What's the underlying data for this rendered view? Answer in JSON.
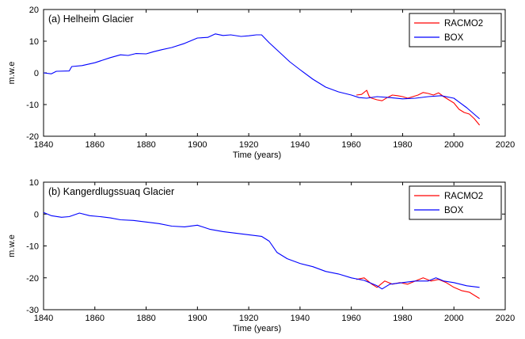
{
  "colors": {
    "series_1": "#ff0000",
    "series_2": "#0000ff",
    "axis": "#000000",
    "background": "#ffffff"
  },
  "chart_data": [
    {
      "type": "line",
      "panel_label": "(a)   Helheim Glacier",
      "xlabel": "Time (years)",
      "ylabel": "m.w.e",
      "xlim": [
        1840,
        2020
      ],
      "ylim": [
        -20,
        20
      ],
      "xticks": [
        1840,
        1860,
        1880,
        1900,
        1920,
        1940,
        1960,
        1980,
        2000,
        2020
      ],
      "yticks": [
        -20,
        -10,
        0,
        10,
        20
      ],
      "grid": false,
      "legend_position": "top-right",
      "series": [
        {
          "name": "RACMO2",
          "color": "#ff0000",
          "x": [
            1962,
            1964,
            1966,
            1967,
            1968,
            1970,
            1972,
            1974,
            1976,
            1978,
            1980,
            1982,
            1984,
            1986,
            1988,
            1990,
            1992,
            1994,
            1996,
            1998,
            2000,
            2002,
            2004,
            2006,
            2008,
            2010
          ],
          "y": [
            -7.0,
            -6.8,
            -5.5,
            -7.5,
            -8.0,
            -8.5,
            -8.8,
            -7.8,
            -7.0,
            -7.2,
            -7.5,
            -8.0,
            -7.5,
            -7.0,
            -6.2,
            -6.5,
            -7.0,
            -6.3,
            -7.5,
            -8.5,
            -9.5,
            -11.5,
            -12.5,
            -13.0,
            -14.5,
            -16.5
          ]
        },
        {
          "name": "BOX",
          "color": "#0000ff",
          "x": [
            1840,
            1843,
            1845,
            1850,
            1851,
            1855,
            1860,
            1863,
            1866,
            1870,
            1873,
            1876,
            1880,
            1883,
            1886,
            1890,
            1895,
            1900,
            1904,
            1907,
            1910,
            1913,
            1917,
            1920,
            1923,
            1925,
            1928,
            1932,
            1936,
            1940,
            1945,
            1950,
            1955,
            1960,
            1963,
            1966,
            1970,
            1975,
            1980,
            1985,
            1990,
            1995,
            2000,
            2005,
            2010
          ],
          "y": [
            0.0,
            -0.3,
            0.5,
            0.6,
            2.0,
            2.3,
            3.2,
            4.0,
            4.8,
            5.7,
            5.5,
            6.1,
            6.0,
            6.7,
            7.3,
            8.0,
            9.3,
            11.0,
            11.2,
            12.3,
            11.8,
            12.0,
            11.5,
            11.7,
            12.0,
            12.0,
            9.5,
            6.5,
            3.5,
            1.0,
            -2.0,
            -4.5,
            -6.0,
            -7.0,
            -7.8,
            -8.0,
            -7.5,
            -7.8,
            -8.2,
            -8.0,
            -7.5,
            -7.2,
            -8.0,
            -11.0,
            -14.5
          ]
        }
      ]
    },
    {
      "type": "line",
      "panel_label": "(b)   Kangerdlugssuaq Glacier",
      "xlabel": "Time (years)",
      "ylabel": "m.w.e",
      "xlim": [
        1840,
        2020
      ],
      "ylim": [
        -30,
        10
      ],
      "xticks": [
        1840,
        1860,
        1880,
        1900,
        1920,
        1940,
        1960,
        1980,
        2000,
        2020
      ],
      "yticks": [
        -30,
        -20,
        -10,
        0,
        10
      ],
      "grid": false,
      "legend_position": "top-right",
      "series": [
        {
          "name": "RACMO2",
          "color": "#ff0000",
          "x": [
            1962,
            1965,
            1968,
            1970,
            1973,
            1976,
            1979,
            1982,
            1985,
            1988,
            1991,
            1994,
            1997,
            2000,
            2003,
            2006,
            2008,
            2010
          ],
          "y": [
            -20.5,
            -20.0,
            -22.0,
            -23.0,
            -21.0,
            -22.0,
            -21.5,
            -22.0,
            -21.0,
            -20.0,
            -21.0,
            -20.5,
            -21.5,
            -23.0,
            -24.0,
            -24.5,
            -25.5,
            -26.5
          ]
        },
        {
          "name": "BOX",
          "color": "#0000ff",
          "x": [
            1840,
            1843,
            1847,
            1850,
            1854,
            1858,
            1862,
            1866,
            1870,
            1875,
            1880,
            1885,
            1890,
            1895,
            1900,
            1905,
            1910,
            1915,
            1920,
            1925,
            1928,
            1931,
            1935,
            1940,
            1945,
            1950,
            1955,
            1960,
            1965,
            1970,
            1972,
            1975,
            1980,
            1985,
            1990,
            1993,
            1996,
            2000,
            2005,
            2010
          ],
          "y": [
            0.5,
            -0.5,
            -1.0,
            -0.8,
            0.3,
            -0.5,
            -0.8,
            -1.2,
            -1.8,
            -2.0,
            -2.5,
            -3.0,
            -3.8,
            -4.0,
            -3.5,
            -4.8,
            -5.5,
            -6.0,
            -6.5,
            -7.0,
            -8.5,
            -12.0,
            -14.0,
            -15.5,
            -16.5,
            -18.0,
            -18.8,
            -20.0,
            -20.8,
            -22.5,
            -23.5,
            -22.0,
            -21.5,
            -21.0,
            -21.0,
            -20.0,
            -21.0,
            -21.5,
            -22.5,
            -23.0
          ]
        }
      ]
    }
  ]
}
